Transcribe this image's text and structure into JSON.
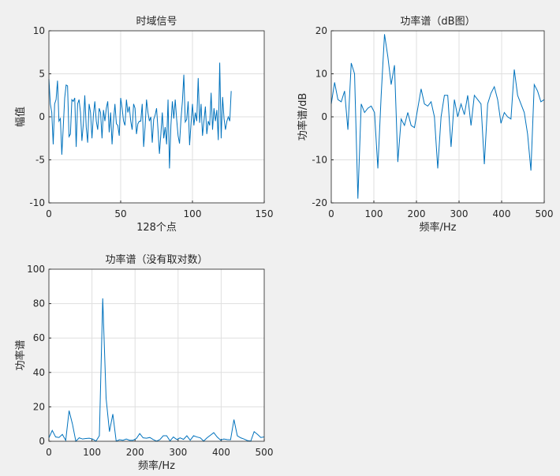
{
  "chart_data": [
    {
      "type": "line",
      "title": "时域信号",
      "xlabel": "128个点",
      "ylabel": "幅值",
      "color": "#0072bd",
      "grid": true,
      "xlim": [
        0,
        150
      ],
      "xticks": [
        0,
        50,
        100,
        150
      ],
      "ylim": [
        -10,
        10
      ],
      "yticks": [
        -10,
        -5,
        0,
        5,
        10
      ],
      "x": [
        0,
        1,
        2,
        3,
        4,
        5,
        6,
        7,
        8,
        9,
        10,
        11,
        12,
        13,
        14,
        15,
        16,
        17,
        18,
        19,
        20,
        21,
        22,
        23,
        24,
        25,
        26,
        27,
        28,
        29,
        30,
        31,
        32,
        33,
        34,
        35,
        36,
        37,
        38,
        39,
        40,
        41,
        42,
        43,
        44,
        45,
        46,
        47,
        48,
        49,
        50,
        51,
        52,
        53,
        54,
        55,
        56,
        57,
        58,
        59,
        60,
        61,
        62,
        63,
        64,
        65,
        66,
        67,
        68,
        69,
        70,
        71,
        72,
        73,
        74,
        75,
        76,
        77,
        78,
        79,
        80,
        81,
        82,
        83,
        84,
        85,
        86,
        87,
        88,
        89,
        90,
        91,
        92,
        93,
        94,
        95,
        96,
        97,
        98,
        99,
        100,
        101,
        102,
        103,
        104,
        105,
        106,
        107,
        108,
        109,
        110,
        111,
        112,
        113,
        114,
        115,
        116,
        117,
        118,
        119,
        120,
        121,
        122,
        123,
        124,
        125,
        126,
        127
      ],
      "values": [
        4.4,
        1.5,
        0.5,
        -3.2,
        1.5,
        2,
        4.2,
        -0.5,
        -0.2,
        -4.4,
        -1.2,
        2.2,
        3.7,
        3.6,
        -2.3,
        -2,
        2,
        1.8,
        2.2,
        -3.5,
        1.5,
        2,
        0.5,
        -2.8,
        -0.8,
        2.5,
        -1.2,
        -3,
        1.5,
        0.5,
        -2.5,
        0.2,
        1.8,
        -0.5,
        -1.5,
        1,
        0.5,
        -2.5,
        0.8,
        -0.5,
        1,
        1.8,
        -1.8,
        0.5,
        -3.2,
        -0.5,
        1.5,
        -0.8,
        -1,
        -2.2,
        2.2,
        1,
        -0.5,
        -1,
        2,
        0.5,
        1.2,
        -0.5,
        -1.5,
        1.5,
        1,
        -2,
        -0.8,
        -0.5,
        -0.5,
        1.5,
        -3.5,
        -1.2,
        2,
        0.5,
        -0.5,
        0,
        -3,
        -0.3,
        0.2,
        1,
        -1.5,
        -4.3,
        -2,
        0.5,
        -2.5,
        -1.2,
        -3.2,
        2,
        -6,
        -1,
        1.8,
        -0.2,
        2,
        -0.3,
        -2.2,
        -3.1,
        -0.3,
        1.8,
        4.9,
        -0.6,
        -0.3,
        1.8,
        -3.3,
        -0.8,
        1.5,
        -1,
        0.5,
        -0.5,
        4.5,
        -0.7,
        1.5,
        -2.2,
        -0.5,
        1.2,
        -2,
        -0.5,
        -1,
        2.8,
        -1.5,
        1,
        -0.5,
        0.8,
        -2.7,
        6.3,
        -2.5,
        2.3,
        -0.2,
        -1.5,
        -0.5,
        0,
        -0.5,
        3
      ]
    },
    {
      "type": "line",
      "title": "功率谱（dB图）",
      "xlabel": "频率/Hz",
      "ylabel": "功率谱/dB",
      "color": "#0072bd",
      "grid": true,
      "xlim": [
        0,
        500
      ],
      "xticks": [
        0,
        100,
        200,
        300,
        400,
        500
      ],
      "ylim": [
        -20,
        20
      ],
      "yticks": [
        -20,
        -10,
        0,
        10,
        20
      ],
      "x": [
        0,
        7.8125,
        15.625,
        23.4375,
        31.25,
        39.0625,
        46.875,
        54.6875,
        62.5,
        70.3125,
        78.125,
        85.9375,
        93.75,
        101.5625,
        109.375,
        117.1875,
        125,
        132.8125,
        140.625,
        148.4375,
        156.25,
        164.0625,
        171.875,
        179.6875,
        187.5,
        195.3125,
        203.125,
        210.9375,
        218.75,
        226.5625,
        234.375,
        242.1875,
        250,
        257.8125,
        265.625,
        273.4375,
        281.25,
        289.0625,
        296.875,
        304.6875,
        312.5,
        320.3125,
        328.125,
        335.9375,
        343.75,
        351.5625,
        359.375,
        367.1875,
        375,
        382.8125,
        390.625,
        398.4375,
        406.25,
        414.0625,
        421.875,
        429.6875,
        437.5,
        445.3125,
        453.125,
        460.9375,
        468.75,
        476.5625,
        484.375,
        492.1875,
        500
      ],
      "values": [
        3,
        8,
        4,
        3.5,
        6,
        -3,
        12.5,
        10,
        -19,
        3,
        1,
        2,
        2.5,
        1,
        -12,
        5,
        19.2,
        14,
        7.5,
        12,
        -10.5,
        -0.5,
        -2,
        1,
        -2,
        -2.5,
        2,
        6.5,
        3,
        2.5,
        3.5,
        0,
        -12,
        0,
        5,
        5,
        -7,
        4,
        0,
        3,
        0.5,
        5,
        -2,
        5,
        4,
        3,
        -11,
        3,
        5.5,
        7,
        4,
        -1.5,
        1,
        0,
        -0.5,
        11,
        5,
        3,
        1,
        -4,
        -12.5,
        7.5,
        6,
        3.5,
        4
      ]
    },
    {
      "type": "line",
      "title": "功率谱（没有取对数）",
      "xlabel": "频率/Hz",
      "ylabel": "功率谱",
      "color": "#0072bd",
      "grid": true,
      "xlim": [
        0,
        500
      ],
      "xticks": [
        0,
        100,
        200,
        300,
        400,
        500
      ],
      "ylim": [
        0,
        100
      ],
      "yticks": [
        0,
        20,
        40,
        60,
        80,
        100
      ],
      "x": [
        0,
        7.8125,
        15.625,
        23.4375,
        31.25,
        39.0625,
        46.875,
        54.6875,
        62.5,
        70.3125,
        78.125,
        85.9375,
        93.75,
        101.5625,
        109.375,
        117.1875,
        125,
        132.8125,
        140.625,
        148.4375,
        156.25,
        164.0625,
        171.875,
        179.6875,
        187.5,
        195.3125,
        203.125,
        210.9375,
        218.75,
        226.5625,
        234.375,
        242.1875,
        250,
        257.8125,
        265.625,
        273.4375,
        281.25,
        289.0625,
        296.875,
        304.6875,
        312.5,
        320.3125,
        328.125,
        335.9375,
        343.75,
        351.5625,
        359.375,
        367.1875,
        375,
        382.8125,
        390.625,
        398.4375,
        406.25,
        414.0625,
        421.875,
        429.6875,
        437.5,
        445.3125,
        453.125,
        460.9375,
        468.75,
        476.5625,
        484.375,
        492.1875,
        500
      ],
      "values": [
        2,
        6.3,
        2.5,
        2.2,
        4,
        0.5,
        17.8,
        10,
        0,
        2,
        1.3,
        1.6,
        1.8,
        1.3,
        0.1,
        3.2,
        83,
        25,
        5.6,
        15.8,
        0.1,
        0.9,
        0.6,
        1.3,
        0.6,
        0.6,
        1.6,
        4.5,
        2,
        1.8,
        2.2,
        1,
        0.1,
        1,
        3.2,
        3.2,
        0.2,
        2.5,
        1,
        2,
        1.1,
        3.2,
        0.6,
        3.2,
        2.5,
        2,
        0.1,
        2,
        3.5,
        5,
        2.5,
        0.7,
        1.3,
        1,
        0.9,
        12.6,
        3.2,
        2,
        1.3,
        0.4,
        0.1,
        5.6,
        4,
        2.2,
        2.5
      ]
    }
  ]
}
